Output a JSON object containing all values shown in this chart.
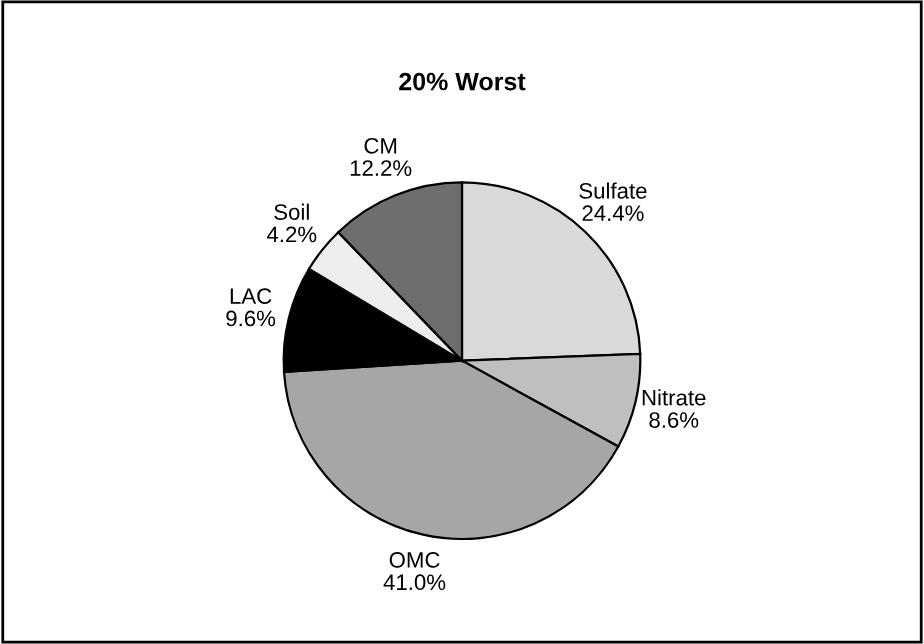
{
  "chart_data": {
    "type": "pie",
    "title": "20% Worst",
    "categories": [
      "Sulfate",
      "Nitrate",
      "OMC",
      "LAC",
      "Soil",
      "CM"
    ],
    "values": [
      24.4,
      8.6,
      41.0,
      9.6,
      4.2,
      12.2
    ],
    "colors": [
      "#d9d9d9",
      "#bfbfbf",
      "#a6a6a6",
      "#000000",
      "#eeeeee",
      "#6e6e6e"
    ],
    "value_labels": [
      "24.4%",
      "8.6%",
      "41.0%",
      "9.6%",
      "4.2%",
      "12.2%"
    ],
    "legend": false
  }
}
